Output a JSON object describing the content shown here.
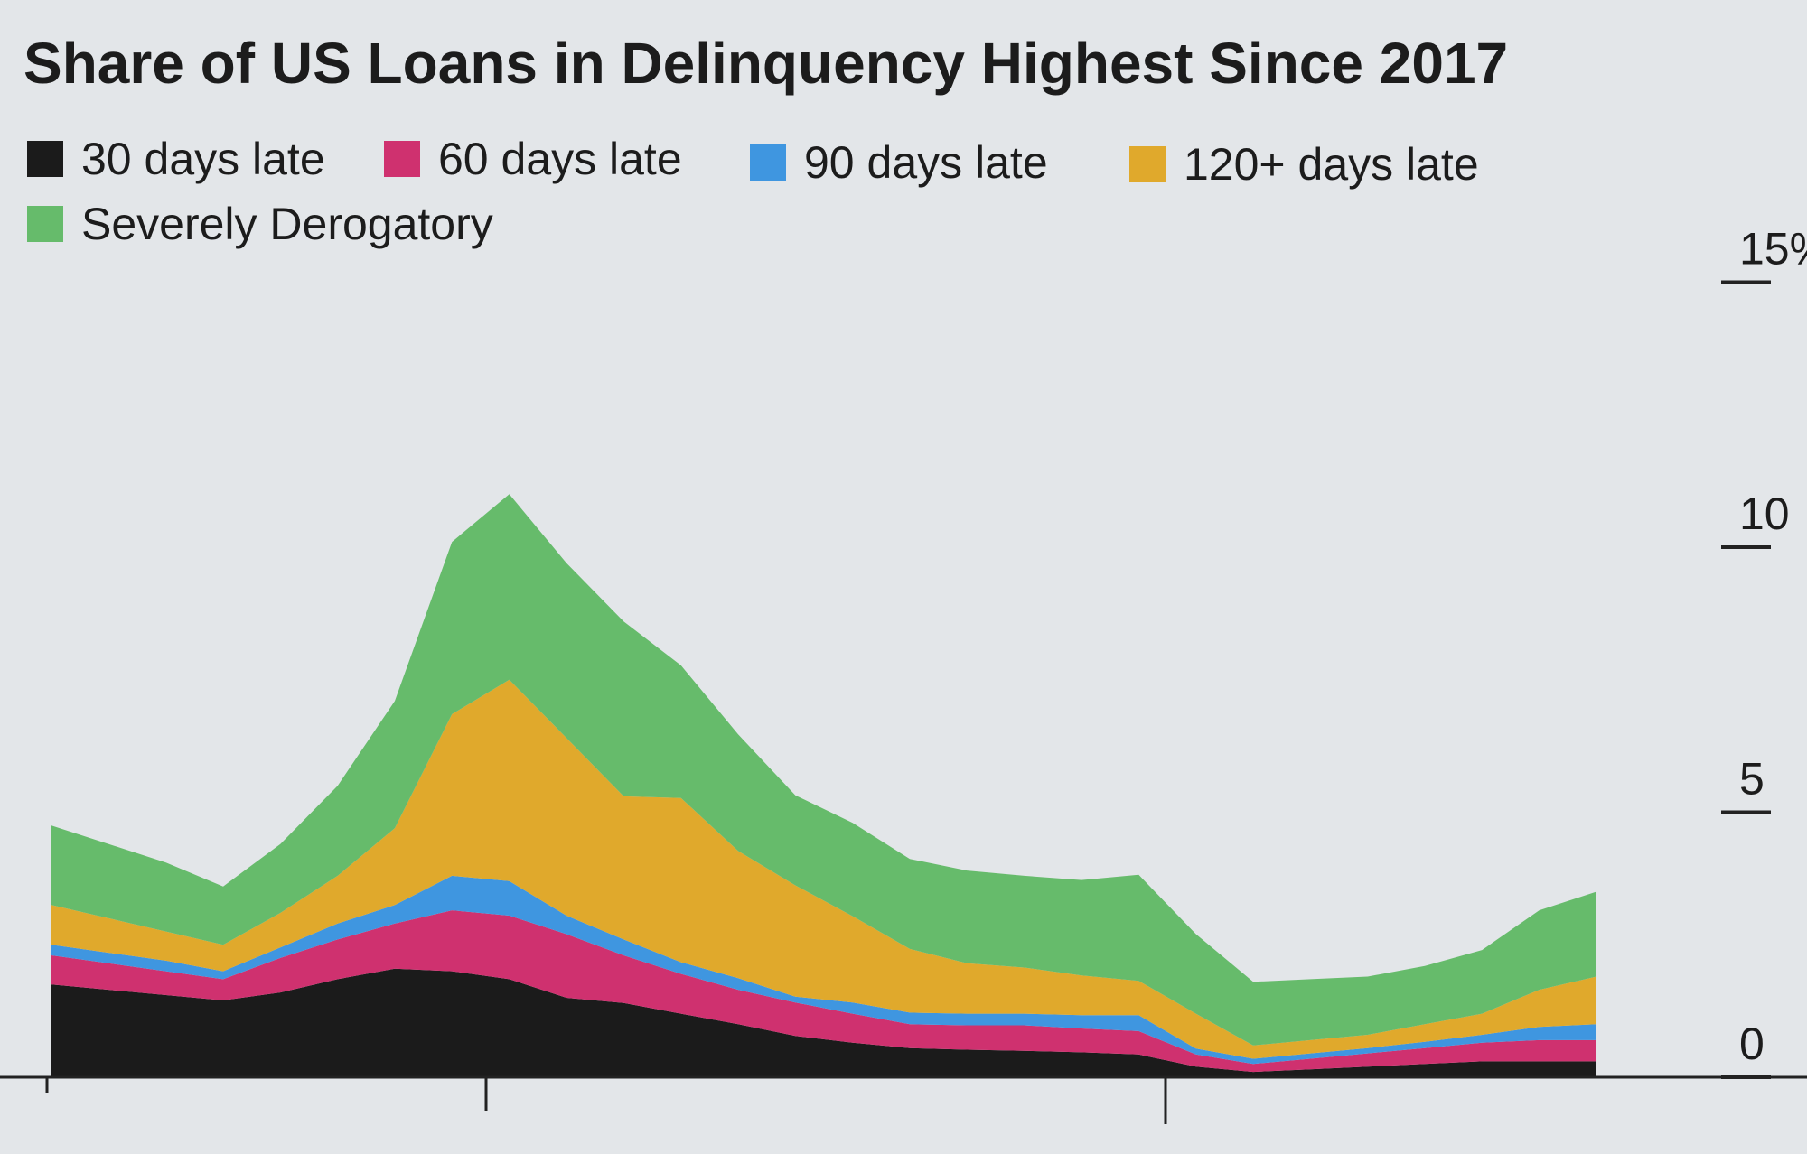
{
  "chart_data": {
    "type": "stacked_area",
    "title": "Share of US Loans in Delinquency Highest Since 2017",
    "categories": [
      null,
      null,
      null,
      null,
      null,
      null,
      null,
      null,
      null,
      null,
      null,
      null,
      null,
      null,
      null,
      null,
      null,
      null,
      null,
      null,
      null,
      null,
      null,
      null,
      null,
      null,
      null,
      null
    ],
    "series": [
      {
        "name": "30 days late",
        "color": "#1b1b1b",
        "values": [
          1.75,
          1.65,
          1.55,
          1.45,
          1.6,
          1.85,
          2.05,
          2.0,
          1.85,
          1.5,
          1.4,
          1.2,
          1.0,
          0.78,
          0.65,
          0.55,
          0.52,
          0.5,
          0.47,
          0.43,
          0.2,
          0.1,
          0.15,
          0.2,
          0.25,
          0.3,
          0.3,
          0.3
        ]
      },
      {
        "name": "60 days late",
        "color": "#cf316f",
        "values": [
          0.55,
          0.5,
          0.45,
          0.4,
          0.65,
          0.75,
          0.85,
          1.15,
          1.2,
          1.2,
          0.9,
          0.75,
          0.65,
          0.63,
          0.55,
          0.45,
          0.46,
          0.48,
          0.45,
          0.44,
          0.23,
          0.15,
          0.2,
          0.25,
          0.3,
          0.35,
          0.4,
          0.4
        ]
      },
      {
        "name": "90 days late",
        "color": "#3f96e0",
        "values": [
          0.2,
          0.2,
          0.2,
          0.15,
          0.2,
          0.3,
          0.35,
          0.65,
          0.65,
          0.35,
          0.3,
          0.22,
          0.22,
          0.11,
          0.21,
          0.22,
          0.22,
          0.22,
          0.25,
          0.3,
          0.11,
          0.1,
          0.1,
          0.1,
          0.12,
          0.15,
          0.25,
          0.3
        ]
      },
      {
        "name": "120+ days late",
        "color": "#e0a92c",
        "values": [
          0.75,
          0.65,
          0.55,
          0.5,
          0.65,
          0.9,
          1.45,
          3.05,
          3.8,
          3.35,
          2.7,
          3.1,
          2.4,
          2.1,
          1.63,
          1.2,
          0.95,
          0.87,
          0.75,
          0.65,
          0.66,
          0.25,
          0.25,
          0.25,
          0.33,
          0.4,
          0.7,
          0.9
        ]
      },
      {
        "name": "Severely Derogatory",
        "color": "#66bb6b",
        "values": [
          1.5,
          1.4,
          1.3,
          1.1,
          1.3,
          1.7,
          2.4,
          3.25,
          3.5,
          3.3,
          3.3,
          2.5,
          2.2,
          1.7,
          1.76,
          1.7,
          1.75,
          1.73,
          1.8,
          2.0,
          1.5,
          1.2,
          1.15,
          1.1,
          1.1,
          1.2,
          1.5,
          1.6
        ]
      }
    ],
    "ylim": [
      0,
      15
    ],
    "yticks": [
      0,
      5,
      10,
      {
        "value": 15,
        "label": "15%"
      }
    ]
  }
}
